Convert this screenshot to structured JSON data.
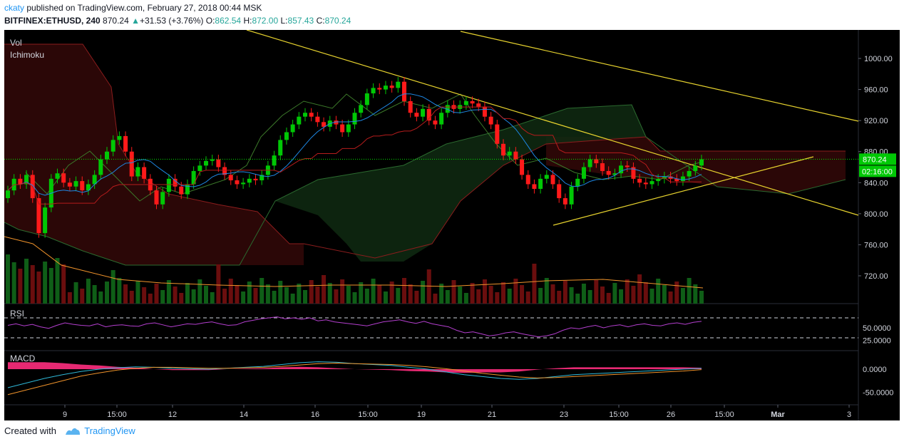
{
  "header": {
    "user": "ckaty",
    "published_text": " published on TradingView.com, February 27, 2018 00:44 MSK",
    "symbol": "BITFINEX:ETHUSD, 240",
    "last": "870.24",
    "change": "+31.53 (+3.76%)",
    "o_label": "O:",
    "o_value": "862.54",
    "h_label": "H:",
    "h_value": "872.00",
    "l_label": "L:",
    "l_value": "857.43",
    "c_label": "C:",
    "c_value": "870.24"
  },
  "footer": {
    "created_with": "Created with",
    "brand": "TradingView"
  },
  "colors": {
    "up": "#00c805",
    "down": "#ff1a1a",
    "trendline": "#e6d22e",
    "rsi": "#b43fcf",
    "macd_line": "#2fb8d8",
    "signal_line": "#f0932b",
    "histogram": "#ff2e7e"
  },
  "chart_data": [
    {
      "type": "candlestick",
      "title": "BITFINEX:ETHUSD, 240",
      "indicators": [
        "Vol",
        "Ichimoku"
      ],
      "ylim": [
        680,
        1040
      ],
      "y_ticks": [
        "1000.00",
        "960.00",
        "920.00",
        "880.00",
        "840.00",
        "800.00",
        "760.00",
        "720.00"
      ],
      "x_ticks": [
        "9",
        "15:00",
        "12",
        "14",
        "16",
        "15:00",
        "19",
        "21",
        "23",
        "15:00",
        "26",
        "15:00",
        "Mar",
        "3"
      ],
      "last_price_label": "870.24",
      "countdown_label": "02:16:00",
      "closes": [
        830,
        845,
        838,
        850,
        820,
        775,
        808,
        845,
        852,
        840,
        835,
        842,
        830,
        838,
        850,
        870,
        880,
        895,
        900,
        880,
        848,
        860,
        845,
        830,
        812,
        828,
        845,
        835,
        825,
        838,
        855,
        862,
        868,
        870,
        860,
        850,
        843,
        838,
        840,
        845,
        843,
        850,
        862,
        875,
        895,
        905,
        915,
        925,
        930,
        925,
        918,
        912,
        920,
        915,
        905,
        915,
        930,
        940,
        955,
        962,
        960,
        965,
        962,
        970,
        945,
        930,
        925,
        935,
        920,
        915,
        930,
        940,
        935,
        940,
        945,
        942,
        938,
        925,
        915,
        890,
        875,
        880,
        870,
        850,
        838,
        832,
        845,
        850,
        838,
        820,
        812,
        835,
        845,
        860,
        870,
        865,
        855,
        850,
        852,
        862,
        860,
        845,
        840,
        838,
        842,
        845,
        848,
        845,
        842,
        848,
        855,
        862,
        870
      ],
      "volume_level": "relative bars, highest near 9th; green up / red down"
    },
    {
      "type": "line",
      "title": "RSI",
      "y_ticks": [
        "50.0000",
        "25.0000"
      ],
      "guides": [
        70,
        30
      ],
      "values": [
        55,
        58,
        54,
        57,
        52,
        49,
        55,
        60,
        57,
        55,
        54,
        58,
        52,
        55,
        56,
        54,
        53,
        58,
        60,
        56,
        52,
        55,
        58,
        57,
        60,
        62,
        58,
        55,
        56,
        62,
        65,
        68,
        70,
        72,
        68,
        70,
        67,
        70,
        64,
        66,
        62,
        60,
        58,
        56,
        54,
        58,
        62,
        64,
        66,
        62,
        59,
        63,
        58,
        55,
        52,
        45,
        40,
        42,
        38,
        34,
        36,
        40,
        42,
        38,
        35,
        32,
        34,
        38,
        45,
        50,
        48,
        52,
        55,
        50,
        54,
        56,
        52,
        56,
        58,
        55,
        54,
        58,
        60,
        57,
        61,
        63
      ]
    },
    {
      "type": "line",
      "title": "MACD",
      "y_ticks": [
        "0.0000",
        "-50.0000"
      ],
      "series": [
        {
          "name": "MACD",
          "values": [
            -40,
            -30,
            -20,
            -12,
            -5,
            0,
            3,
            5,
            4,
            2,
            1,
            0,
            2,
            4,
            6,
            10,
            14,
            16,
            15,
            12,
            10,
            8,
            4,
            0,
            -6,
            -12,
            -16,
            -20,
            -22,
            -20,
            -16,
            -12,
            -10,
            -8,
            -6,
            -4,
            -2,
            0,
            2
          ]
        },
        {
          "name": "Signal",
          "values": [
            -55,
            -45,
            -35,
            -25,
            -15,
            -8,
            -2,
            2,
            4,
            4,
            3,
            2,
            2,
            3,
            4,
            6,
            9,
            12,
            13,
            12,
            11,
            10,
            8,
            5,
            1,
            -4,
            -9,
            -13,
            -17,
            -19,
            -18,
            -16,
            -14,
            -12,
            -10,
            -8,
            -6,
            -4,
            -1
          ]
        },
        {
          "name": "Histogram",
          "values": [
            15,
            15,
            15,
            13,
            10,
            8,
            5,
            3,
            0,
            -2,
            -2,
            -2,
            0,
            1,
            2,
            4,
            5,
            4,
            2,
            0,
            -1,
            -2,
            -4,
            -5,
            -7,
            -8,
            -7,
            -7,
            -5,
            -1,
            2,
            4,
            4,
            4,
            4,
            4,
            4,
            4,
            3
          ]
        }
      ]
    }
  ]
}
